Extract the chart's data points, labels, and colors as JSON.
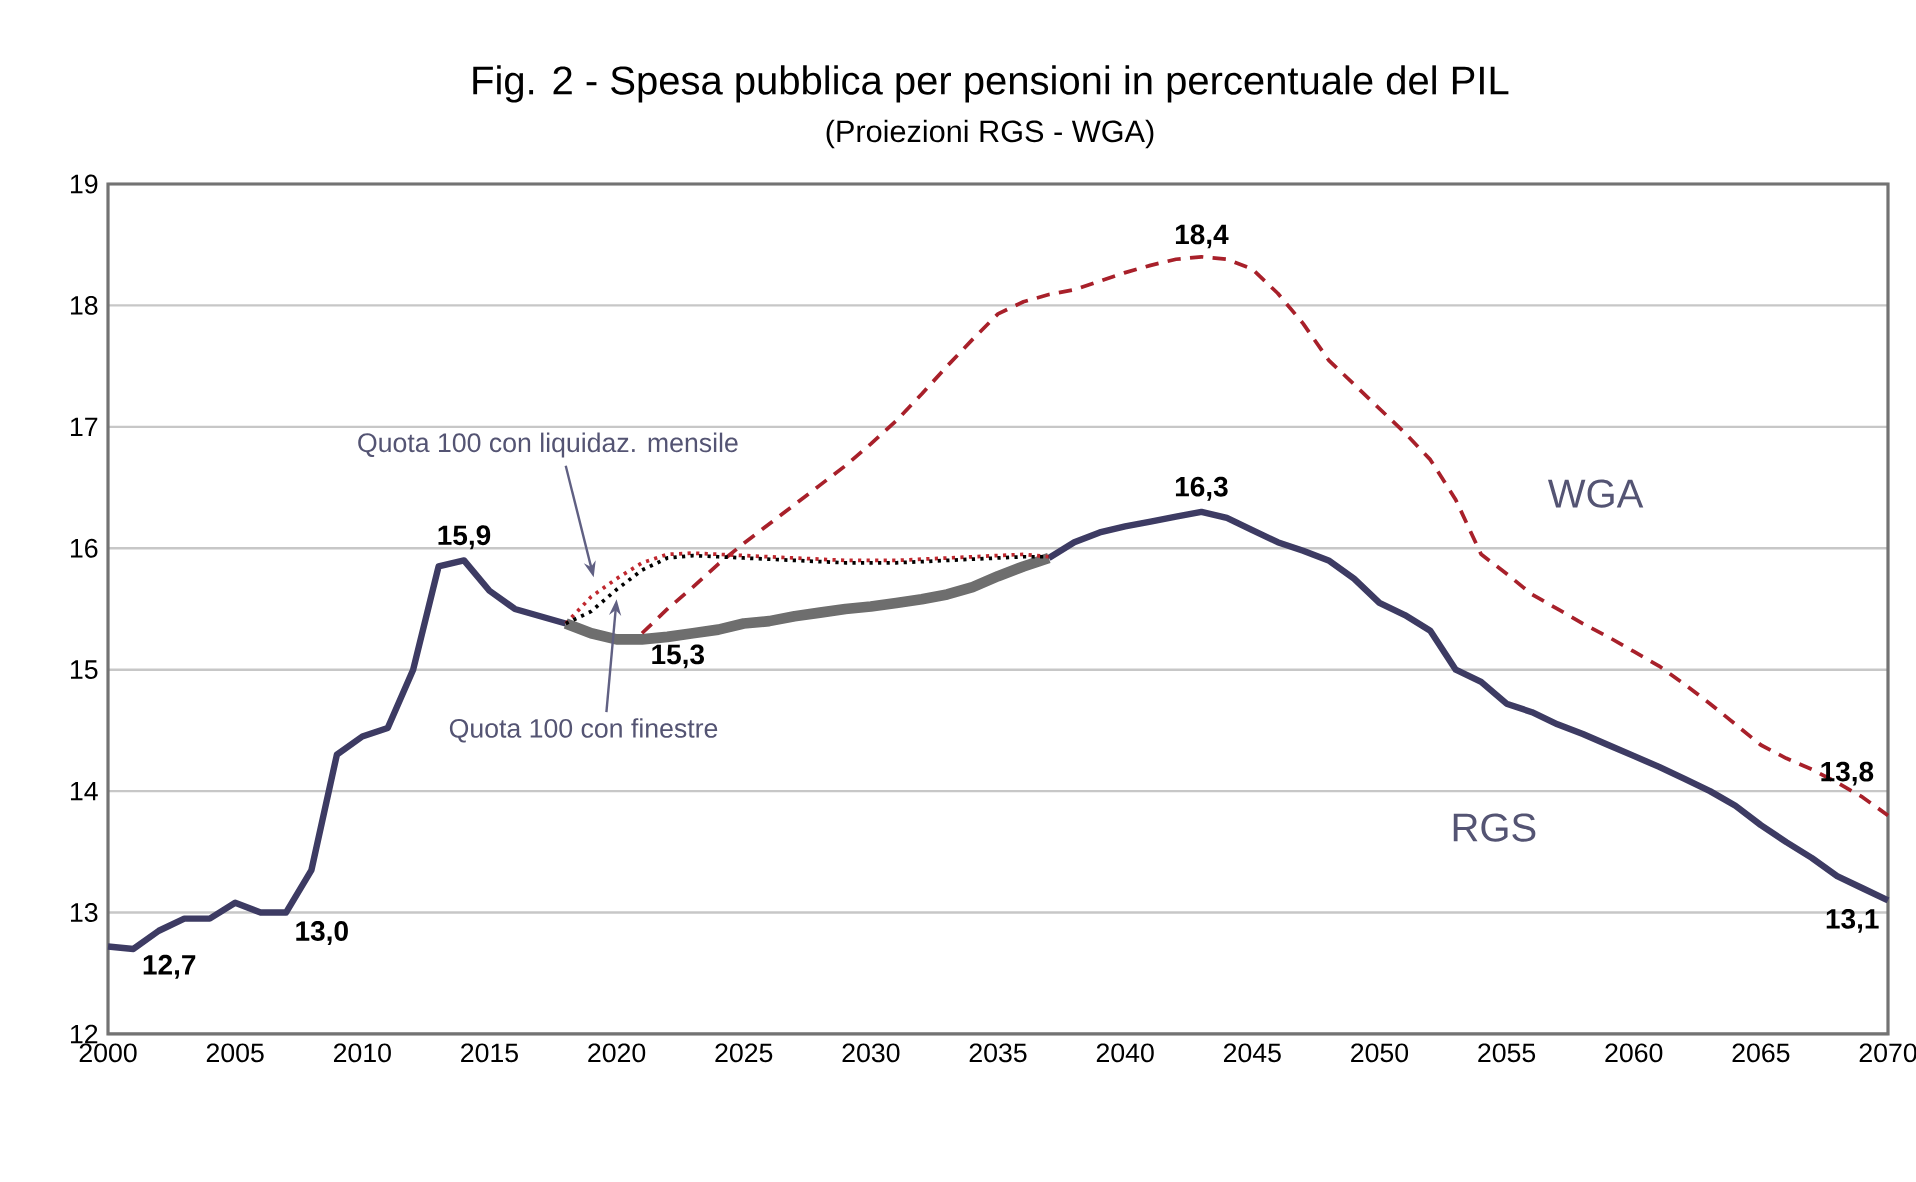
{
  "chart_data": {
    "type": "line",
    "title": "Fig. 2 - Spesa pubblica per pensioni in percentuale del PIL",
    "subtitle": "(Proiezioni RGS -  WGA)",
    "xlim": [
      2000,
      2070
    ],
    "xticks": [
      2000,
      2005,
      2010,
      2015,
      2020,
      2025,
      2030,
      2035,
      2040,
      2045,
      2050,
      2055,
      2060,
      2065,
      2070
    ],
    "ylim": [
      12,
      19
    ],
    "yticks": [
      12,
      13,
      14,
      15,
      16,
      17,
      18,
      19
    ],
    "grid": "y",
    "series": [
      {
        "name": "RGS",
        "color": "#3d3b63",
        "line_style": "solid",
        "x": [
          2000,
          2001,
          2002,
          2003,
          2004,
          2005,
          2006,
          2007,
          2008,
          2009,
          2010,
          2011,
          2012,
          2013,
          2014,
          2015,
          2016,
          2017,
          2018,
          2019,
          2020,
          2021,
          2022,
          2023,
          2024,
          2025,
          2026,
          2027,
          2028,
          2029,
          2030,
          2031,
          2032,
          2033,
          2034,
          2035,
          2036,
          2037,
          2038,
          2039,
          2040,
          2041,
          2042,
          2043,
          2044,
          2045,
          2046,
          2047,
          2048,
          2049,
          2050,
          2051,
          2052,
          2053,
          2054,
          2055,
          2056,
          2057,
          2058,
          2059,
          2060,
          2061,
          2062,
          2063,
          2064,
          2065,
          2066,
          2067,
          2068,
          2069,
          2070
        ],
        "values": [
          12.72,
          12.7,
          12.85,
          12.95,
          12.95,
          13.08,
          13.0,
          13.0,
          13.35,
          14.3,
          14.45,
          14.52,
          15.0,
          15.85,
          15.9,
          15.65,
          15.5,
          15.44,
          15.38,
          null,
          null,
          null,
          null,
          null,
          null,
          null,
          null,
          null,
          null,
          null,
          null,
          null,
          null,
          null,
          null,
          null,
          null,
          15.92,
          16.05,
          16.13,
          16.18,
          16.22,
          16.26,
          16.3,
          16.25,
          16.15,
          16.05,
          15.98,
          15.9,
          15.75,
          15.55,
          15.45,
          15.32,
          15.0,
          14.9,
          14.72,
          14.65,
          14.55,
          14.47,
          14.38,
          14.29,
          14.2,
          14.1,
          14.0,
          13.88,
          13.72,
          13.58,
          13.45,
          13.3,
          13.2,
          13.1
        ]
      },
      {
        "color": "#6e6e6e",
        "line_style": "solid",
        "x": [
          2018,
          2019,
          2020,
          2021,
          2022,
          2023,
          2024,
          2025,
          2026,
          2027,
          2028,
          2029,
          2030,
          2031,
          2032,
          2033,
          2034,
          2035,
          2036,
          2037
        ],
        "values": [
          15.38,
          15.3,
          15.25,
          15.25,
          15.27,
          15.3,
          15.33,
          15.38,
          15.4,
          15.44,
          15.47,
          15.5,
          15.52,
          15.55,
          15.58,
          15.62,
          15.68,
          15.77,
          15.85,
          15.92
        ]
      },
      {
        "name": "WGA",
        "color": "#a8202a",
        "line_style": "dashed",
        "x": [
          2021,
          2022,
          2023,
          2024,
          2025,
          2026,
          2027,
          2028,
          2029,
          2030,
          2031,
          2032,
          2033,
          2034,
          2035,
          2036,
          2037,
          2038,
          2039,
          2040,
          2041,
          2042,
          2043,
          2044,
          2045,
          2046,
          2047,
          2048,
          2049,
          2050,
          2051,
          2052,
          2053,
          2054,
          2055,
          2056,
          2057,
          2058,
          2059,
          2060,
          2061,
          2062,
          2063,
          2064,
          2065,
          2066,
          2067,
          2068,
          2069,
          2070
        ],
        "values": [
          15.3,
          15.5,
          15.68,
          15.87,
          16.04,
          16.2,
          16.36,
          16.52,
          16.68,
          16.86,
          17.05,
          17.27,
          17.5,
          17.72,
          17.93,
          18.03,
          18.09,
          18.13,
          18.2,
          18.27,
          18.33,
          18.38,
          18.4,
          18.38,
          18.3,
          18.1,
          17.85,
          17.55,
          17.35,
          17.15,
          16.95,
          16.73,
          16.4,
          15.95,
          15.79,
          15.62,
          15.5,
          15.38,
          15.27,
          15.15,
          15.03,
          14.88,
          14.72,
          14.55,
          14.38,
          14.27,
          14.18,
          14.07,
          13.95,
          13.8
        ]
      },
      {
        "name": "Quota 100 con  liquidaz. mensile",
        "color": "#c0282f",
        "line_style": "dotted",
        "x": [
          2018,
          2019,
          2020,
          2021,
          2022,
          2023,
          2024,
          2025,
          2026,
          2027,
          2028,
          2029,
          2030,
          2031,
          2032,
          2033,
          2034,
          2035,
          2036,
          2037
        ],
        "values": [
          15.38,
          15.6,
          15.75,
          15.88,
          15.95,
          15.96,
          15.95,
          15.94,
          15.93,
          15.92,
          15.91,
          15.9,
          15.9,
          15.9,
          15.91,
          15.92,
          15.93,
          15.94,
          15.95,
          15.93
        ]
      },
      {
        "name": "Quota 100 con finestre",
        "color": "#000000",
        "line_style": "dotted",
        "x": [
          2018,
          2019,
          2020,
          2021,
          2022,
          2023,
          2024,
          2025,
          2026,
          2027,
          2028,
          2029,
          2030,
          2031,
          2032,
          2033,
          2034,
          2035,
          2036,
          2037
        ],
        "values": [
          15.38,
          15.48,
          15.66,
          15.82,
          15.92,
          15.94,
          15.93,
          15.92,
          15.91,
          15.9,
          15.89,
          15.88,
          15.88,
          15.88,
          15.89,
          15.9,
          15.91,
          15.92,
          15.93,
          15.93
        ]
      }
    ],
    "annotations": [
      {
        "text": "12,7",
        "x": 2001,
        "y": 12.7
      },
      {
        "text": "13,0",
        "x": 2007,
        "y": 13.0
      },
      {
        "text": "15,9",
        "x": 2014,
        "y": 15.9
      },
      {
        "text": "15,3",
        "x": 2021,
        "y": 15.3
      },
      {
        "text": "16,3",
        "x": 2043,
        "y": 16.3
      },
      {
        "text": "18,4",
        "x": 2043,
        "y": 18.4
      },
      {
        "text": "13,8",
        "x": 2070,
        "y": 13.8
      },
      {
        "text": "13,1",
        "x": 2070,
        "y": 13.1
      }
    ]
  }
}
